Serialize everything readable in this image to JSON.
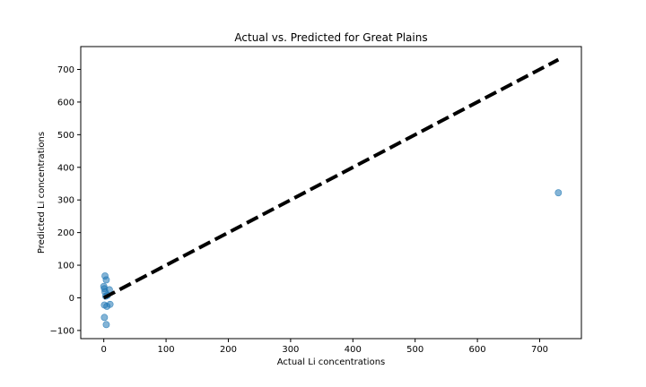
{
  "chart_data": {
    "type": "scatter",
    "title": "Actual vs. Predicted for Great Plains",
    "xlabel": "Actual Li concentrations",
    "ylabel": "Predicted Li concentrations",
    "xlim": [
      -37,
      767
    ],
    "ylim": [
      -125,
      770
    ],
    "xticks": [
      0,
      100,
      200,
      300,
      400,
      500,
      600,
      700
    ],
    "yticks": [
      -100,
      0,
      100,
      200,
      300,
      400,
      500,
      600,
      700
    ],
    "grid": false,
    "points": [
      {
        "x": 2,
        "y": 67
      },
      {
        "x": 4,
        "y": 55
      },
      {
        "x": 0,
        "y": 35
      },
      {
        "x": 1,
        "y": 28
      },
      {
        "x": 9,
        "y": 25
      },
      {
        "x": 2,
        "y": 18
      },
      {
        "x": 6,
        "y": 8
      },
      {
        "x": 3,
        "y": 5
      },
      {
        "x": 1,
        "y": -22
      },
      {
        "x": 5,
        "y": -26
      },
      {
        "x": 10,
        "y": -20
      },
      {
        "x": 1,
        "y": -60
      },
      {
        "x": 4,
        "y": -82
      },
      {
        "x": 730,
        "y": 322
      }
    ],
    "reference_line": {
      "x": [
        0,
        730
      ],
      "y": [
        0,
        730
      ],
      "style": "dashed",
      "color": "#000000"
    },
    "point_color": "#1f77b4",
    "point_alpha": 0.55
  }
}
